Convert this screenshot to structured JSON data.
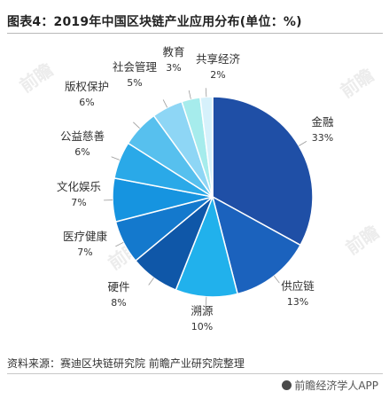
{
  "title": "图表4：2019年中国区块链产业应用分布(单位：%)",
  "source": "资料来源：赛迪区块链研究院 前瞻产业研究院整理",
  "footer": "前瞻经济学人APP",
  "watermark": "前瞻",
  "chart_data": {
    "type": "pie",
    "title": "图表4：2019年中国区块链产业应用分布(单位：%)",
    "unit": "%",
    "slices": [
      {
        "name": "金融",
        "label": "33%",
        "value": 33,
        "color": "#1f4fa6"
      },
      {
        "name": "供应链",
        "label": "13%",
        "value": 13,
        "color": "#1b62bd"
      },
      {
        "name": "溯源",
        "label": "10%",
        "value": 10,
        "color": "#21b1ec"
      },
      {
        "name": "硬件",
        "label": "8%",
        "value": 8,
        "color": "#0f57a8"
      },
      {
        "name": "医疗健康",
        "label": "7%",
        "value": 7,
        "color": "#1479cd"
      },
      {
        "name": "文化娱乐",
        "label": "7%",
        "value": 7,
        "color": "#1694e0"
      },
      {
        "name": "公益慈善",
        "label": "6%",
        "value": 6,
        "color": "#2aa9e8"
      },
      {
        "name": "版权保护",
        "label": "6%",
        "value": 6,
        "color": "#57c0ee"
      },
      {
        "name": "社会管理",
        "label": "5%",
        "value": 5,
        "color": "#8ed6f5"
      },
      {
        "name": "教育",
        "label": "3%",
        "value": 3,
        "color": "#a6ecec"
      },
      {
        "name": "共享经济",
        "label": "2%",
        "value": 2,
        "color": "#d6f1fb"
      }
    ],
    "legend": "none"
  }
}
